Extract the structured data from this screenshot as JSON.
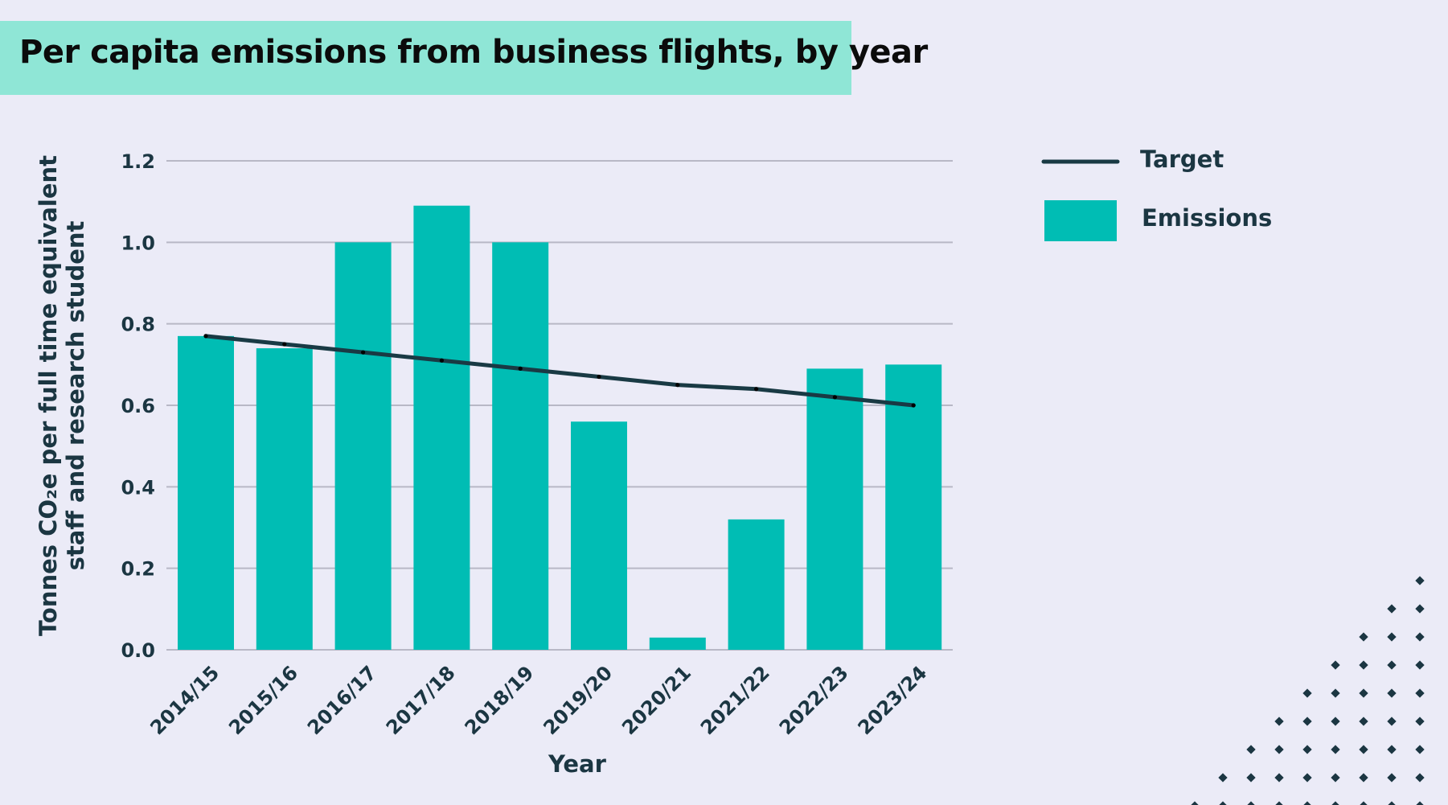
{
  "chart_data": {
    "type": "bar",
    "title": "Per capita emissions from business flights, by year",
    "xlabel": "Year",
    "ylabel_line1": "Tonnes CO₂e per full time equivalent",
    "ylabel_line2": "staff and research student",
    "categories": [
      "2014/15",
      "2015/16",
      "2016/17",
      "2017/18",
      "2018/19",
      "2019/20",
      "2020/21",
      "2021/22",
      "2022/23",
      "2023/24"
    ],
    "series": [
      {
        "name": "Emissions",
        "type": "bar",
        "values": [
          0.77,
          0.74,
          1.0,
          1.09,
          1.0,
          0.56,
          0.03,
          0.32,
          0.69,
          0.7
        ],
        "color": "#00bdb4"
      },
      {
        "name": "Target",
        "type": "line",
        "values": [
          0.77,
          0.75,
          0.73,
          0.71,
          0.69,
          0.67,
          0.65,
          0.64,
          0.62,
          0.6
        ],
        "color": "#193a44"
      }
    ],
    "ylim": [
      0,
      1.2
    ],
    "yticks": [
      "0.0",
      "0.2",
      "0.4",
      "0.6",
      "0.8",
      "1.0",
      "1.2"
    ],
    "grid": true,
    "legend_position": "top-right"
  },
  "colors": {
    "background": "#ebebf7",
    "title_band": "#8fe6d6",
    "bar": "#00bdb4",
    "line": "#193a44",
    "gridline": "#b8b8c6",
    "text": "#1b3642",
    "dots": "#1b3642"
  }
}
